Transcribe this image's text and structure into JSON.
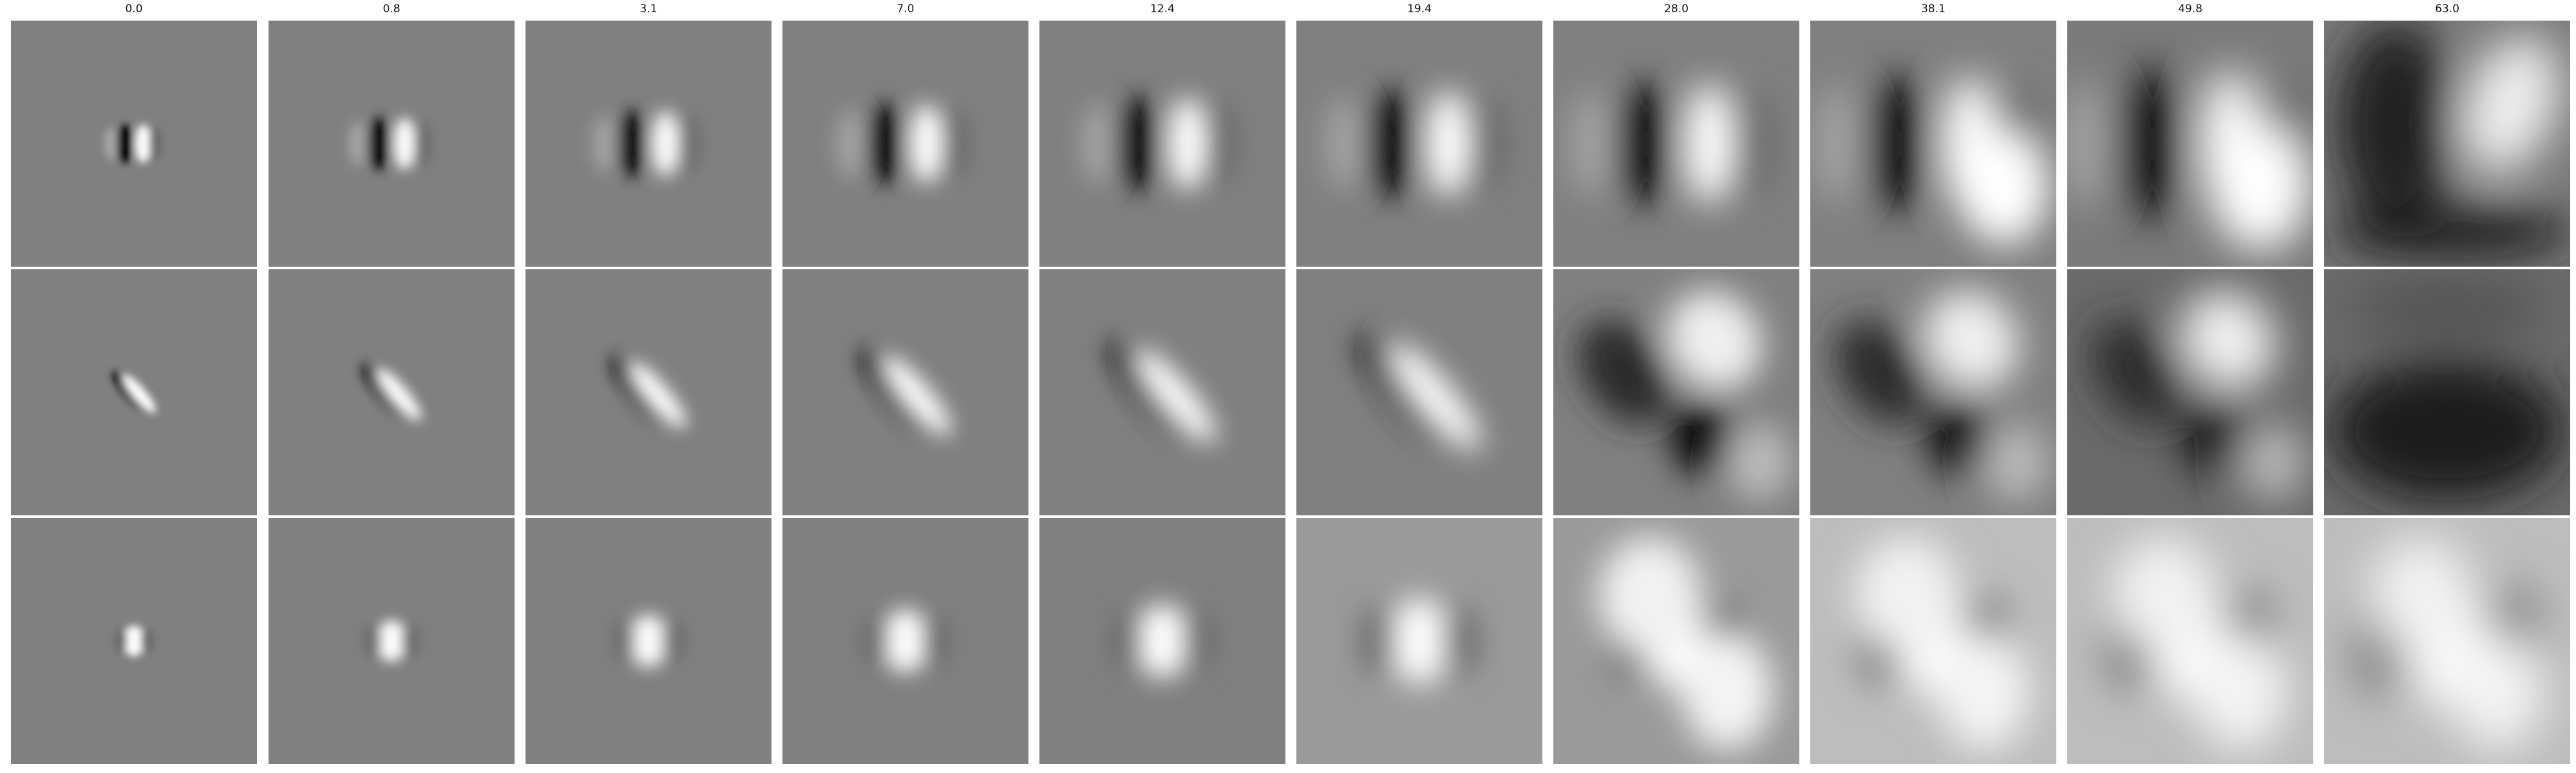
{
  "figure": {
    "column_labels": [
      "0.0",
      "0.8",
      "3.1",
      "7.0",
      "12.4",
      "19.4",
      "28.0",
      "38.1",
      "49.8",
      "63.0"
    ],
    "row_count": 3,
    "colormap": "grayscale",
    "background_gray": "#808080"
  }
}
